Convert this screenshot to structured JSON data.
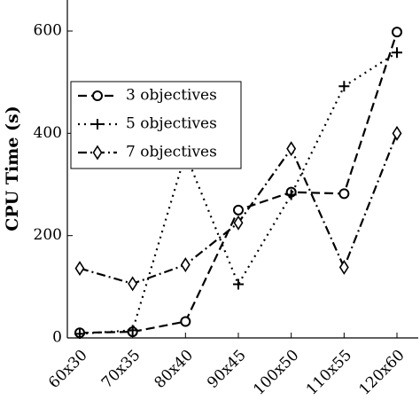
{
  "chart_data": {
    "type": "line",
    "ylabel": "CPU Time (s)",
    "xlabel": "",
    "categories": [
      "60x30",
      "70x35",
      "80x40",
      "90x45",
      "100x50",
      "110x55",
      "120x60"
    ],
    "y_ticks": [
      "0",
      "200",
      "400",
      "600"
    ],
    "ylim": [
      0,
      660
    ],
    "grid": false,
    "legend_position": "left-middle",
    "series": [
      {
        "name": "3 objectives",
        "values": [
          10,
          12,
          32,
          250,
          285,
          282,
          598
        ],
        "dash": "dashed",
        "marker": "circle"
      },
      {
        "name": "5 objectives",
        "values": [
          8,
          15,
          360,
          105,
          280,
          492,
          558
        ],
        "dash": "dotted",
        "marker": "plus"
      },
      {
        "name": "7 objectives",
        "values": [
          136,
          106,
          143,
          225,
          370,
          138,
          400
        ],
        "dash": "dash-dot",
        "marker": "diamond"
      }
    ]
  }
}
